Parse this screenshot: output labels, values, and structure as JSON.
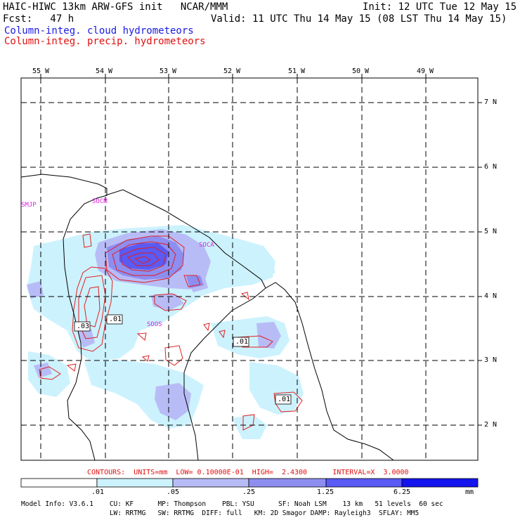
{
  "header": {
    "model_line": "HAIC-HIWC 13km ARW-GFS init   NCAR/MMM",
    "init_line": "Init: 12 UTC Tue 12 May 15",
    "fcst_line": "Fcst:   47 h",
    "valid_line": "Valid: 11 UTC Thu 14 May 15 (08 LST Thu 14 May 15)",
    "field1": "Column-integ. cloud hydrometeors",
    "field2": "Column-integ. precip. hydrometeors"
  },
  "axes": {
    "lon_labels": [
      "55 W",
      "54 W",
      "53 W",
      "52 W",
      "51 W",
      "50 W",
      "49 W"
    ],
    "lat_labels": [
      "7 N",
      "6 N",
      "5 N",
      "4 N",
      "3 N",
      "2 N"
    ]
  },
  "stations": [
    "SMJP",
    "SOCM",
    "SOCA",
    "SOOS"
  ],
  "contour_labels": [
    ".03",
    ".01",
    ".01",
    ".01"
  ],
  "contours_info": "CONTOURS:  UNITS=mm  LOW= 0.10000E-01  HIGH=  2.4300      INTERVAL=X  3.0000",
  "colorbar": {
    "ticks": [
      ".01",
      ".05",
      ".25",
      "1.25",
      "6.25"
    ],
    "units": "mm",
    "colors": [
      "#ffffff",
      "#ccf2fe",
      "#b8bcf6",
      "#8e8ef0",
      "#5a5af4",
      "#1414ee"
    ]
  },
  "model_info": {
    "line1": "Model Info: V3.6.1    CU: KF      MP: Thompson    PBL: YSU      SF: Noah LSM    13 km   51 levels  60 sec",
    "line2": "                      LW: RRTMG   SW: RRTMG  DIFF: full   KM: 2D Smagor DAMP: Rayleigh3  SFLAY: MM5"
  },
  "colors": {
    "cloud_text": "#1a1ae6",
    "precip_text": "#e01010",
    "station": "#e020e0"
  }
}
